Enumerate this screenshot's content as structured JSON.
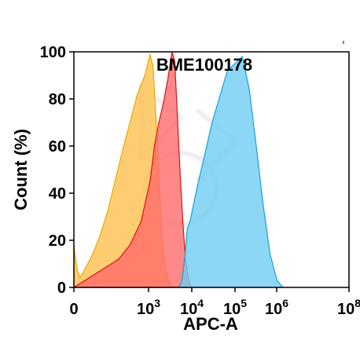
{
  "chart_data": {
    "type": "area",
    "title": "BME100178",
    "xlabel": "APC-A",
    "ylabel": "Count (%)",
    "ylim": [
      0,
      100
    ],
    "y_ticks": [
      "0",
      "20",
      "40",
      "60",
      "80",
      "100"
    ],
    "x_scale": "biexponential",
    "x_ticks": [
      {
        "label": "0",
        "value": 0
      },
      {
        "label": "10",
        "sup": "3",
        "value": 1000
      },
      {
        "label": "10",
        "sup": "4",
        "value": 10000
      },
      {
        "label": "10",
        "sup": "5",
        "value": 100000
      },
      {
        "label": "10",
        "sup": "6",
        "value": 1000000
      },
      {
        "label": "10",
        "sup": "8",
        "value": 100000000
      }
    ],
    "grid": false,
    "legend": "none",
    "series": [
      {
        "color": "#FFC04D",
        "stroke": "#E8A800",
        "points": [
          [
            0,
            18
          ],
          [
            40,
            8
          ],
          [
            80,
            4
          ],
          [
            150,
            8
          ],
          [
            250,
            14
          ],
          [
            350,
            22
          ],
          [
            450,
            32
          ],
          [
            550,
            45
          ],
          [
            650,
            58
          ],
          [
            750,
            70
          ],
          [
            850,
            82
          ],
          [
            950,
            90
          ],
          [
            1050,
            99
          ],
          [
            1150,
            94
          ],
          [
            1250,
            72
          ],
          [
            1350,
            50
          ],
          [
            1450,
            22
          ],
          [
            1550,
            10
          ],
          [
            1650,
            4
          ],
          [
            1800,
            0
          ]
        ]
      },
      {
        "color": "#FF6B6B",
        "stroke": "#E01010",
        "points": [
          [
            0,
            0
          ],
          [
            150,
            3
          ],
          [
            300,
            6
          ],
          [
            450,
            9
          ],
          [
            600,
            12
          ],
          [
            750,
            18
          ],
          [
            900,
            28
          ],
          [
            1050,
            45
          ],
          [
            1200,
            60
          ],
          [
            1350,
            70
          ],
          [
            1500,
            78
          ],
          [
            1650,
            88
          ],
          [
            1800,
            100
          ],
          [
            1950,
            96
          ],
          [
            2100,
            72
          ],
          [
            2250,
            48
          ],
          [
            2400,
            28
          ],
          [
            2550,
            12
          ],
          [
            2700,
            4
          ],
          [
            2850,
            0
          ]
        ]
      },
      {
        "color": "#6FCDF2",
        "stroke": "#1A9ED8",
        "points": [
          [
            2200,
            0
          ],
          [
            2350,
            3
          ],
          [
            2500,
            12
          ],
          [
            2650,
            25
          ],
          [
            2800,
            28
          ],
          [
            2950,
            42
          ],
          [
            3100,
            70
          ],
          [
            3250,
            92
          ],
          [
            3400,
            98
          ],
          [
            3550,
            84
          ],
          [
            3700,
            60
          ],
          [
            3850,
            35
          ],
          [
            4000,
            14
          ],
          [
            4150,
            3
          ],
          [
            4300,
            0
          ]
        ]
      }
    ]
  }
}
